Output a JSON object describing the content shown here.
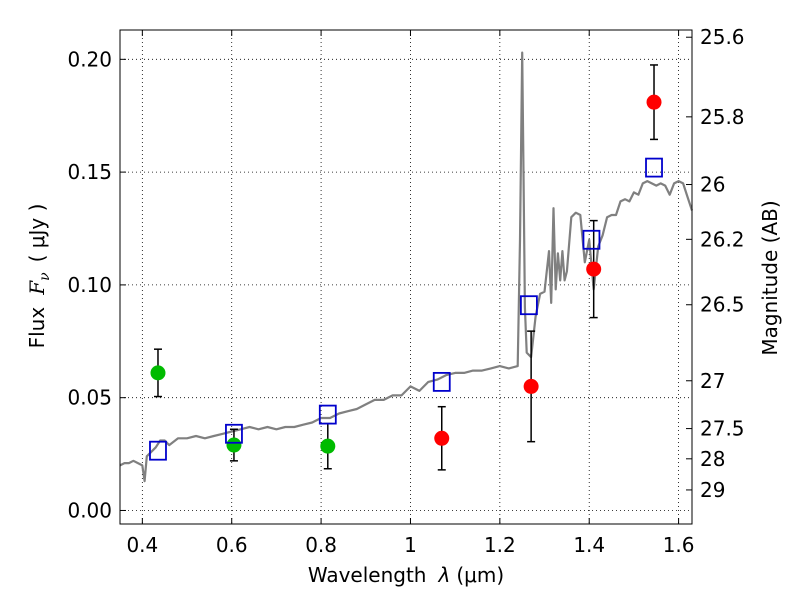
{
  "chart_data": {
    "type": "scatter",
    "xlabel": "Wavelength",
    "xlabel_symbol": "λ",
    "xlabel_unit": "(μm)",
    "ylabel": "Flux",
    "ylabel_symbol": "F",
    "ylabel_sub": "ν",
    "ylabel_unit": "( μJy )",
    "y2label": "Magnitude (AB)",
    "xlim": [
      0.35,
      1.63
    ],
    "ylim": [
      -0.006,
      0.213
    ],
    "x_ticks": [
      0.4,
      0.6,
      0.8,
      1.0,
      1.2,
      1.4,
      1.6
    ],
    "x_tick_labels": [
      "0.4",
      "0.6",
      "0.8",
      "1",
      "1.2",
      "1.4",
      "1.6"
    ],
    "y_ticks": [
      0.0,
      0.05,
      0.1,
      0.15,
      0.2
    ],
    "y_tick_labels": [
      "0.00",
      "0.05",
      "0.10",
      "0.15",
      "0.20"
    ],
    "y2_ticks": [
      {
        "label": "25.6",
        "flux": 0.2098
      },
      {
        "label": "25.8",
        "flux": 0.1745
      },
      {
        "label": "26",
        "flux": 0.1445
      },
      {
        "label": "26.2",
        "flux": 0.1202
      },
      {
        "label": "26.5",
        "flux": 0.0912
      },
      {
        "label": "27",
        "flux": 0.0575
      },
      {
        "label": "27.5",
        "flux": 0.0363
      },
      {
        "label": "28",
        "flux": 0.0229
      },
      {
        "label": "29",
        "flux": 0.0091
      }
    ],
    "grid": true,
    "series": [
      {
        "kind": "spectrum",
        "color": "#808080",
        "x": [
          0.35,
          0.36,
          0.37,
          0.38,
          0.39,
          0.4,
          0.405,
          0.41,
          0.42,
          0.43,
          0.44,
          0.45,
          0.46,
          0.48,
          0.5,
          0.52,
          0.54,
          0.56,
          0.58,
          0.6,
          0.62,
          0.64,
          0.66,
          0.68,
          0.7,
          0.72,
          0.74,
          0.76,
          0.78,
          0.8,
          0.82,
          0.84,
          0.86,
          0.88,
          0.9,
          0.92,
          0.94,
          0.96,
          0.98,
          1.0,
          1.02,
          1.04,
          1.06,
          1.08,
          1.1,
          1.12,
          1.14,
          1.16,
          1.18,
          1.2,
          1.22,
          1.24,
          1.245,
          1.25,
          1.253,
          1.256,
          1.26,
          1.27,
          1.28,
          1.29,
          1.3,
          1.31,
          1.315,
          1.32,
          1.325,
          1.33,
          1.335,
          1.34,
          1.345,
          1.35,
          1.36,
          1.37,
          1.38,
          1.39,
          1.4,
          1.41,
          1.42,
          1.43,
          1.44,
          1.45,
          1.46,
          1.47,
          1.48,
          1.49,
          1.5,
          1.51,
          1.52,
          1.53,
          1.54,
          1.55,
          1.56,
          1.57,
          1.58,
          1.59,
          1.6,
          1.61,
          1.62,
          1.63
        ],
        "y": [
          0.02,
          0.021,
          0.021,
          0.022,
          0.021,
          0.02,
          0.013,
          0.024,
          0.026,
          0.028,
          0.031,
          0.031,
          0.029,
          0.032,
          0.032,
          0.033,
          0.032,
          0.033,
          0.034,
          0.035,
          0.036,
          0.037,
          0.036,
          0.037,
          0.036,
          0.037,
          0.037,
          0.038,
          0.039,
          0.041,
          0.041,
          0.043,
          0.044,
          0.045,
          0.047,
          0.049,
          0.049,
          0.051,
          0.051,
          0.055,
          0.053,
          0.057,
          0.058,
          0.06,
          0.061,
          0.061,
          0.062,
          0.062,
          0.063,
          0.064,
          0.063,
          0.064,
          0.12,
          0.203,
          0.15,
          0.09,
          0.07,
          0.068,
          0.086,
          0.096,
          0.097,
          0.115,
          0.092,
          0.134,
          0.098,
          0.114,
          0.102,
          0.115,
          0.102,
          0.106,
          0.13,
          0.132,
          0.131,
          0.11,
          0.12,
          0.098,
          0.117,
          0.122,
          0.13,
          0.131,
          0.131,
          0.137,
          0.138,
          0.137,
          0.141,
          0.14,
          0.145,
          0.146,
          0.145,
          0.144,
          0.145,
          0.144,
          0.14,
          0.145,
          0.146,
          0.145,
          0.139,
          0.133
        ]
      },
      {
        "kind": "green-points",
        "color": "#00bb00",
        "x": [
          0.435,
          0.605,
          0.815
        ],
        "y": [
          0.061,
          0.029,
          0.0285
        ],
        "err": [
          0.0105,
          0.007,
          0.01
        ]
      },
      {
        "kind": "red-points",
        "color": "#ff0000",
        "x": [
          1.07,
          1.27,
          1.41,
          1.545
        ],
        "y": [
          0.032,
          0.055,
          0.107,
          0.181
        ],
        "err": [
          0.014,
          0.0245,
          0.0215,
          0.0165
        ]
      },
      {
        "kind": "model-squares",
        "color": "#0000cc",
        "x": [
          0.435,
          0.605,
          0.815,
          1.07,
          1.265,
          1.405,
          1.545
        ],
        "y": [
          0.0265,
          0.034,
          0.0425,
          0.057,
          0.091,
          0.12,
          0.152
        ]
      }
    ]
  }
}
